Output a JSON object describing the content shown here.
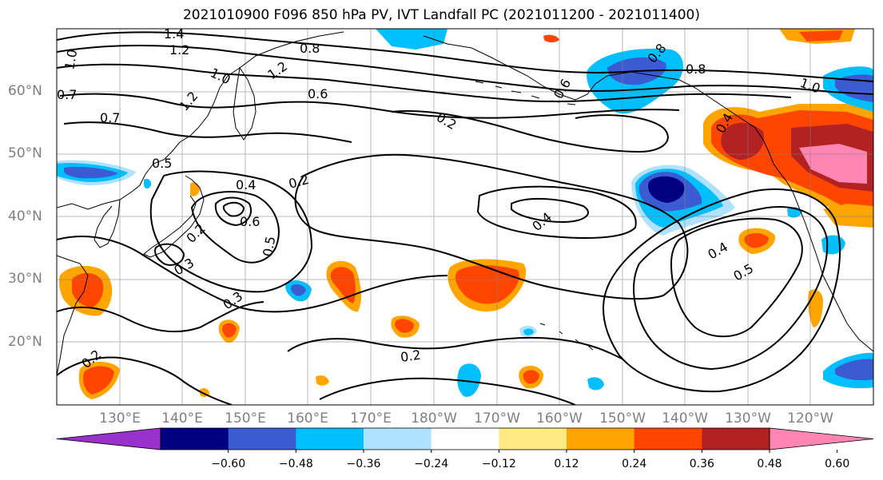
{
  "title": "2021010900 F096 850 hPa PV, IVT Landfall PC (2021011200 - 2021011400)",
  "map": {
    "lat_labels": [
      "60°N",
      "50°N",
      "40°N",
      "30°N",
      "20°N"
    ],
    "lon_labels": [
      "130°E",
      "140°E",
      "150°E",
      "160°E",
      "170°E",
      "180°W",
      "170°W",
      "160°W",
      "150°W",
      "140°W",
      "130°W",
      "120°W"
    ],
    "gridline_color": "#808080",
    "contour_color": "#000000",
    "contour_labels": [
      "1.4",
      "1.2",
      "1.0",
      "0.8",
      "0.6",
      "0.7",
      "1.2",
      "1.0",
      "1.2",
      "0.8",
      "0.6",
      "1.0",
      "0.2",
      "0.5",
      "0.4",
      "0.6",
      "0.2",
      "0.3",
      "0.5",
      "0.3",
      "0.2",
      "0.4",
      "0.4",
      "0.5",
      "0.2",
      "0.2",
      "0.4",
      "0.7",
      "0.8"
    ]
  },
  "colorbar": {
    "colors": [
      "#9932cc",
      "#000080",
      "#3a5bd2",
      "#00bfff",
      "#b0e2ff",
      "#ffffff",
      "#ffeb82",
      "#ffa500",
      "#ff4500",
      "#b22222",
      "#ff86b3"
    ],
    "ticks": [
      "−0.60",
      "−0.48",
      "−0.36",
      "−0.24",
      "−0.12",
      "0.12",
      "0.24",
      "0.36",
      "0.48",
      "0.60"
    ]
  }
}
